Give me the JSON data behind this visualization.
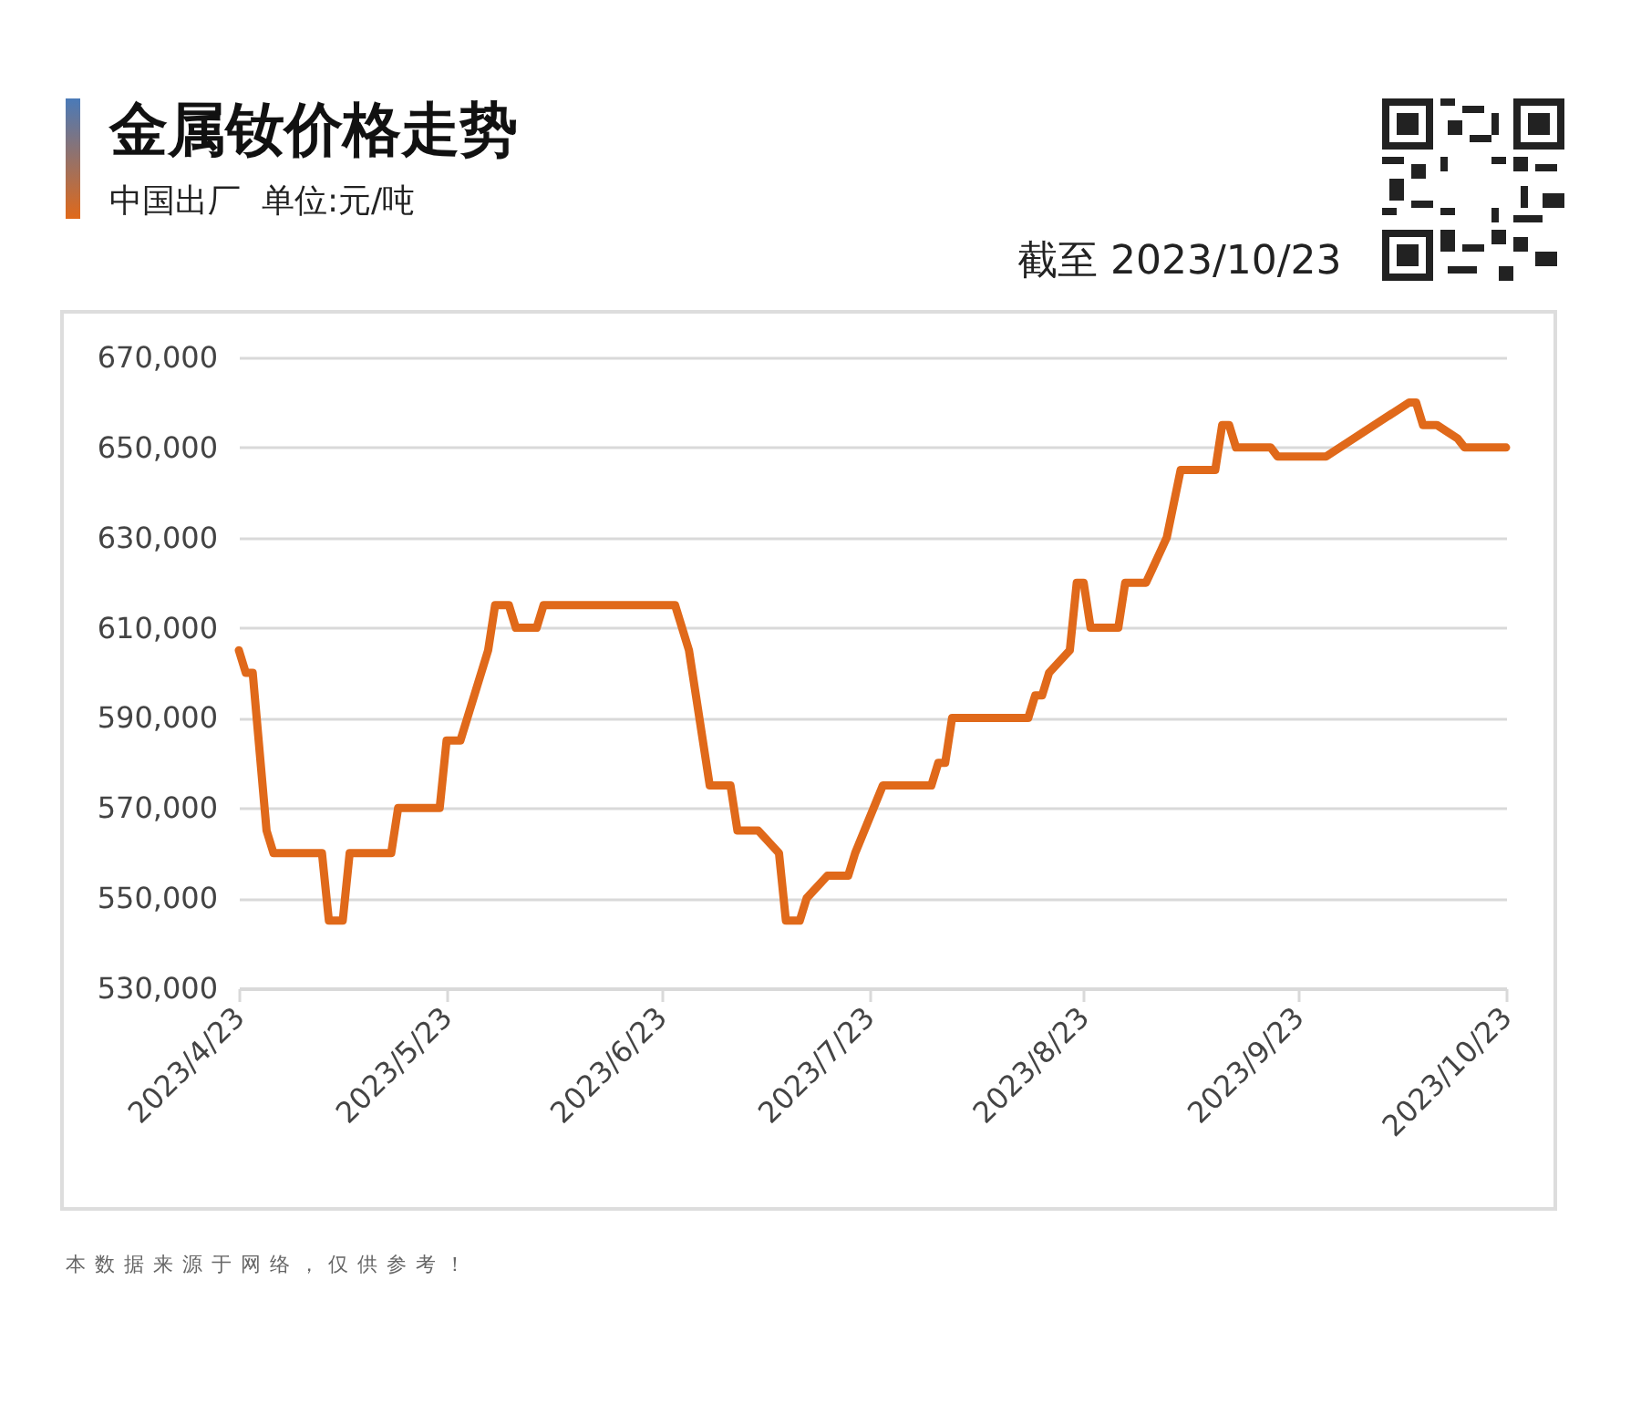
{
  "chart_data": {
    "type": "line",
    "title": "金属钕价格走势",
    "subtitle": "中国出厂  单位:元/吨",
    "annotations": [
      "截至 2023/10/23",
      "本数据来源于网络，仅供参考！"
    ],
    "x": [
      "2023-04-23",
      "2023-04-24",
      "2023-04-25",
      "2023-04-27",
      "2023-04-28",
      "2023-05-05",
      "2023-05-06",
      "2023-05-08",
      "2023-05-09",
      "2023-05-15",
      "2023-05-16",
      "2023-05-22",
      "2023-05-23",
      "2023-05-25",
      "2023-05-29",
      "2023-05-30",
      "2023-06-01",
      "2023-06-02",
      "2023-06-05",
      "2023-06-06",
      "2023-06-25",
      "2023-06-27",
      "2023-06-30",
      "2023-07-03",
      "2023-07-04",
      "2023-07-07",
      "2023-07-10",
      "2023-07-11",
      "2023-07-13",
      "2023-07-14",
      "2023-07-17",
      "2023-07-20",
      "2023-07-21",
      "2023-07-25",
      "2023-08-01",
      "2023-08-02",
      "2023-08-03",
      "2023-08-04",
      "2023-08-15",
      "2023-08-16",
      "2023-08-17",
      "2023-08-18",
      "2023-08-21",
      "2023-08-22",
      "2023-08-23",
      "2023-08-24",
      "2023-08-28",
      "2023-08-29",
      "2023-09-01",
      "2023-09-04",
      "2023-09-06",
      "2023-09-11",
      "2023-09-12",
      "2023-09-13",
      "2023-09-14",
      "2023-09-19",
      "2023-09-20",
      "2023-09-27",
      "2023-10-09",
      "2023-10-10",
      "2023-10-11",
      "2023-10-13",
      "2023-10-16",
      "2023-10-17",
      "2023-10-23"
    ],
    "series": [
      {
        "color": "#e0691a",
        "values": [
          605000,
          600000,
          600000,
          565000,
          560000,
          560000,
          545000,
          545000,
          560000,
          560000,
          570000,
          570000,
          585000,
          585000,
          605000,
          615000,
          615000,
          610000,
          610000,
          615000,
          615000,
          605000,
          575000,
          575000,
          565000,
          565000,
          560000,
          545000,
          545000,
          550000,
          555000,
          555000,
          560000,
          575000,
          575000,
          580000,
          580000,
          590000,
          590000,
          595000,
          595000,
          600000,
          605000,
          620000,
          620000,
          610000,
          610000,
          620000,
          620000,
          630000,
          645000,
          645000,
          655000,
          655000,
          650000,
          650000,
          648000,
          648000,
          660000,
          660000,
          655000,
          655000,
          652000,
          650000,
          650000
        ]
      }
    ],
    "xlim": [
      "2023-04-23",
      "2023-10-23"
    ],
    "xticks": [
      {
        "value": "2023-04-23",
        "label": "2023/4/23"
      },
      {
        "value": "2023-05-23",
        "label": "2023/5/23"
      },
      {
        "value": "2023-06-23",
        "label": "2023/6/23"
      },
      {
        "value": "2023-07-23",
        "label": "2023/7/23"
      },
      {
        "value": "2023-08-23",
        "label": "2023/8/23"
      },
      {
        "value": "2023-09-23",
        "label": "2023/9/23"
      },
      {
        "value": "2023-10-23",
        "label": "2023/10/23"
      }
    ],
    "ylim": [
      530000,
      670000
    ],
    "yticks": [
      {
        "value": 530000,
        "label": "530,000"
      },
      {
        "value": 550000,
        "label": "550,000"
      },
      {
        "value": 570000,
        "label": "570,000"
      },
      {
        "value": 590000,
        "label": "590,000"
      },
      {
        "value": 610000,
        "label": "610,000"
      },
      {
        "value": 630000,
        "label": "630,000"
      },
      {
        "value": 650000,
        "label": "650,000"
      },
      {
        "value": 670000,
        "label": "670,000"
      }
    ],
    "grid": "y"
  }
}
